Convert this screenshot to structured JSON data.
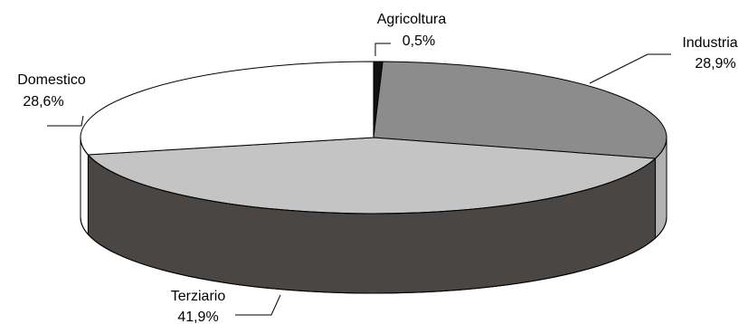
{
  "chart_data": {
    "type": "pie",
    "three_d": true,
    "legend": "none",
    "slices": [
      {
        "name": "Agricoltura",
        "value": 0.5,
        "value_label": "0,5%",
        "top_color": "#111111",
        "side_color": "#111111"
      },
      {
        "name": "Industria",
        "value": 28.9,
        "value_label": "28,9%",
        "top_color": "#8c8c8c",
        "side_color": "#b1b1b1"
      },
      {
        "name": "Terziario",
        "value": 41.9,
        "value_label": "41,9%",
        "top_color": "#c4c4c4",
        "side_color": "#4a4644"
      },
      {
        "name": "Domestico",
        "value": 28.6,
        "value_label": "28,6%",
        "top_color": "#ffffff",
        "side_color": "#ffffff"
      }
    ]
  }
}
